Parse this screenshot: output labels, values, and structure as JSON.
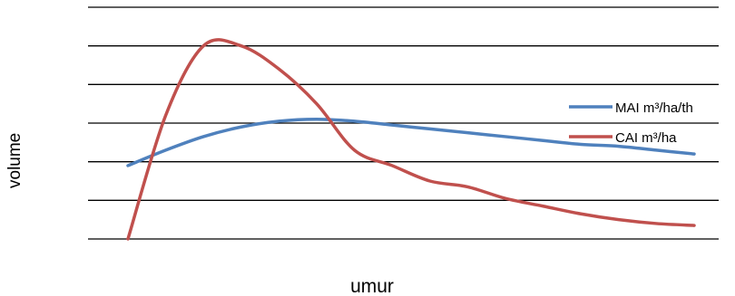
{
  "chart_data": {
    "type": "line",
    "title": "",
    "xlabel": "umur",
    "ylabel": "volume",
    "grid": true,
    "legend_position": "right",
    "ylim": [
      0,
      6
    ],
    "x": [
      0,
      1,
      2,
      3,
      4,
      5,
      6,
      7,
      8,
      9,
      10,
      11,
      12,
      13,
      14,
      15
    ],
    "series": [
      {
        "name": "MAI m³/ha/th",
        "color": "#4F81BD",
        "values": [
          1.9,
          2.3,
          2.65,
          2.9,
          3.05,
          3.1,
          3.05,
          2.95,
          2.85,
          2.75,
          2.65,
          2.55,
          2.45,
          2.4,
          2.3,
          2.2
        ]
      },
      {
        "name": "CAI m³/ha",
        "color": "#C0504D",
        "values": [
          0.0,
          3.2,
          5.0,
          5.0,
          4.4,
          3.5,
          2.3,
          1.9,
          1.5,
          1.35,
          1.05,
          0.85,
          0.65,
          0.5,
          0.4,
          0.35
        ]
      }
    ]
  }
}
